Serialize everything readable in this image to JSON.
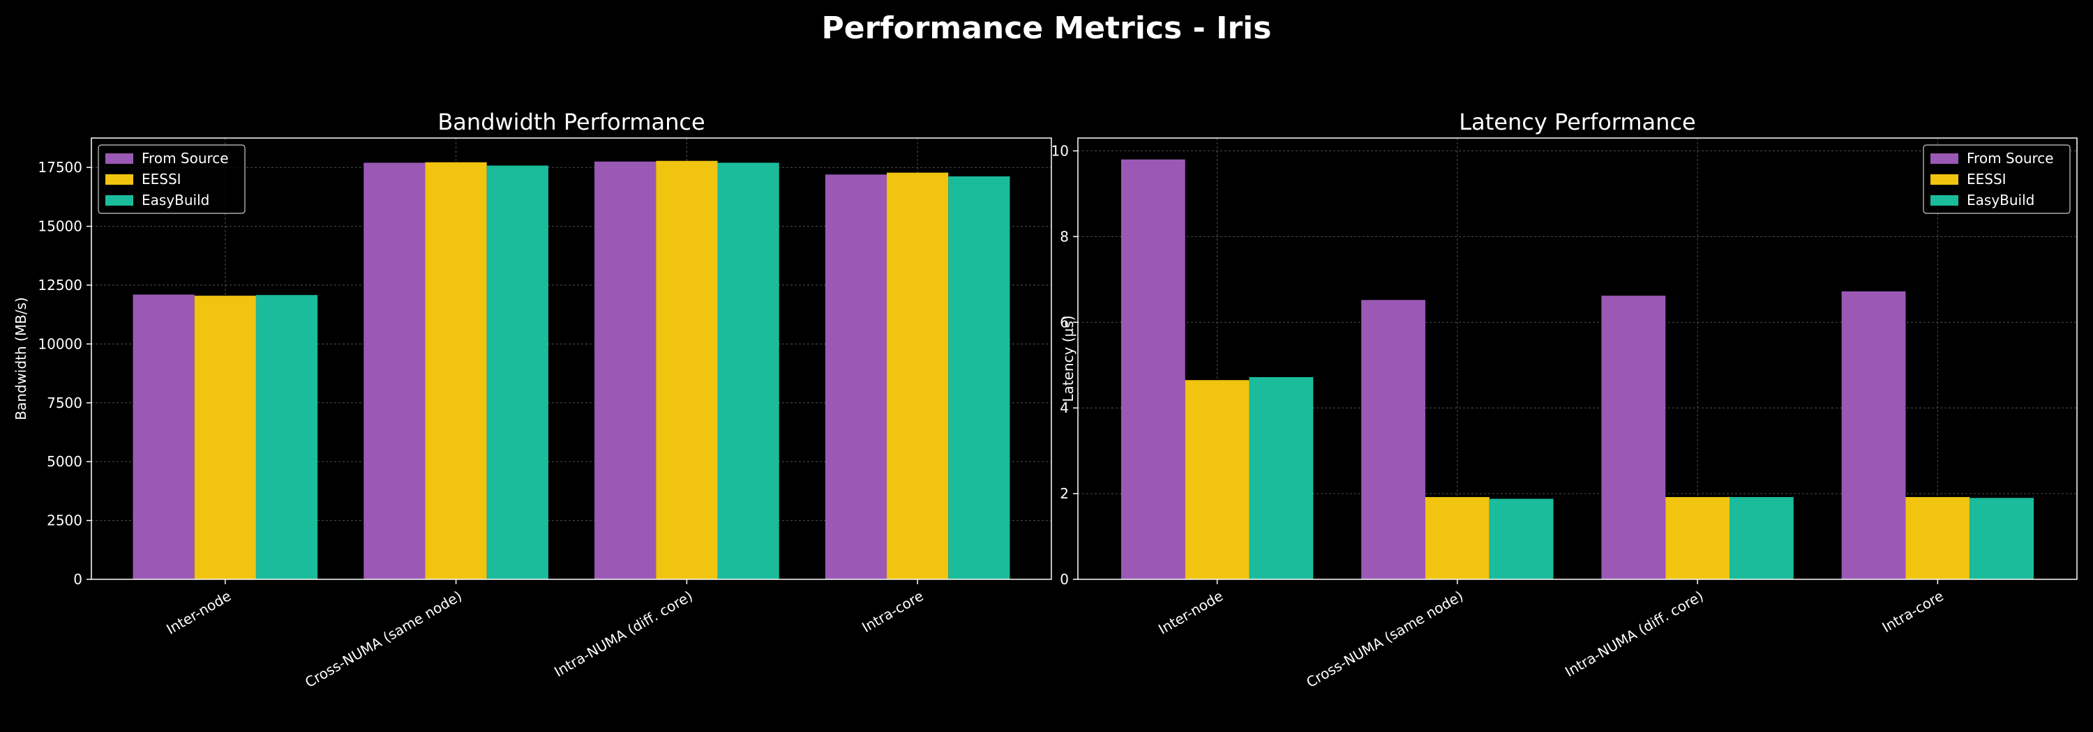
{
  "figure_title": "Performance Metrics - Iris",
  "colors": {
    "background": "#000000",
    "axis": "#ffffff",
    "grid": "#666666"
  },
  "chart_data": [
    {
      "type": "bar",
      "title": "Bandwidth Performance",
      "xlabel": "",
      "ylabel": "Bandwidth (MB/s)",
      "categories": [
        "Inter-node",
        "Cross-NUMA (same node)",
        "Intra-NUMA (diff. core)",
        "Intra-core"
      ],
      "ylim": [
        0,
        18750
      ],
      "yticks": [
        0,
        2500,
        5000,
        7500,
        10000,
        12500,
        15000,
        17500
      ],
      "grid": true,
      "legend_position": "top-left",
      "series": [
        {
          "name": "From Source",
          "color": "#9b59b6",
          "values": [
            12100,
            17700,
            17750,
            17200
          ]
        },
        {
          "name": "EESSI",
          "color": "#f1c40f",
          "values": [
            12050,
            17720,
            17780,
            17280
          ]
        },
        {
          "name": "EasyBuild",
          "color": "#1abc9c",
          "values": [
            12080,
            17580,
            17700,
            17120
          ]
        }
      ]
    },
    {
      "type": "bar",
      "title": "Latency Performance",
      "xlabel": "",
      "ylabel": "Latency (µs)",
      "categories": [
        "Inter-node",
        "Cross-NUMA (same node)",
        "Intra-NUMA (diff. core)",
        "Intra-core"
      ],
      "ylim": [
        0,
        10.3
      ],
      "yticks": [
        0,
        2,
        4,
        6,
        8,
        10
      ],
      "grid": true,
      "legend_position": "top-right",
      "series": [
        {
          "name": "From Source",
          "color": "#9b59b6",
          "values": [
            9.8,
            6.52,
            6.62,
            6.72
          ]
        },
        {
          "name": "EESSI",
          "color": "#f1c40f",
          "values": [
            4.65,
            1.92,
            1.92,
            1.92
          ]
        },
        {
          "name": "EasyBuild",
          "color": "#1abc9c",
          "values": [
            4.72,
            1.88,
            1.92,
            1.9
          ]
        }
      ]
    }
  ]
}
